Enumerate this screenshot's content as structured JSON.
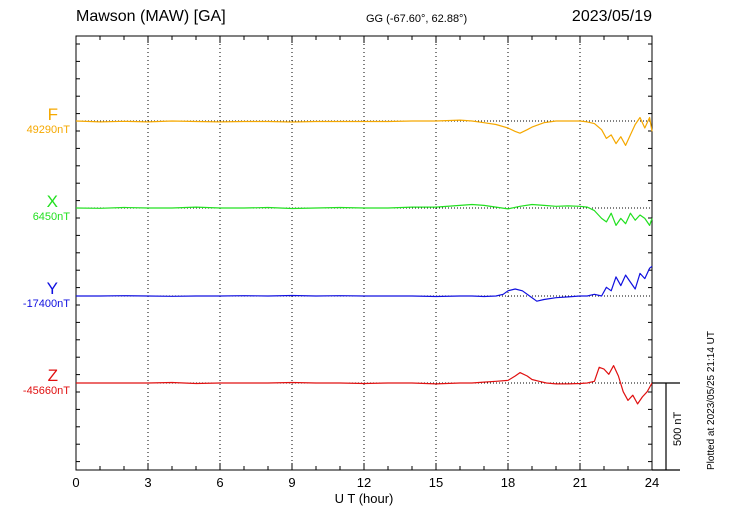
{
  "header": {
    "station": "Mawson (MAW)  [GA]",
    "coords": "GG (-67.60°,  62.88°)",
    "date": "2023/05/19"
  },
  "footer": {
    "plotted_at": "Plotted at 2023/05/25 21:14 UT",
    "scale_label": "500 nT"
  },
  "chart_data": {
    "type": "line",
    "xlabel": "U T (hour)",
    "xlim": [
      0,
      24
    ],
    "xticks": [
      0,
      3,
      6,
      9,
      12,
      15,
      18,
      21,
      24
    ],
    "grid": true,
    "scale_bar_nT": 500,
    "series": [
      {
        "name": "F",
        "baseline_label": "49290nT",
        "color": "#f5a800",
        "x": [
          0,
          1,
          2,
          3,
          4,
          5,
          6,
          7,
          8,
          9,
          10,
          11,
          12,
          13,
          14,
          15,
          16,
          16.5,
          17,
          17.5,
          18,
          18.3,
          18.5,
          18.8,
          19,
          19.5,
          20,
          20.5,
          21,
          21.3,
          21.6,
          21.9,
          22.1,
          22.3,
          22.5,
          22.7,
          22.9,
          23.1,
          23.3,
          23.5,
          23.7,
          23.9,
          24
        ],
        "y": [
          0,
          -5,
          -2,
          -5,
          0,
          -3,
          -5,
          -3,
          -3,
          -6,
          -3,
          -3,
          -3,
          -3,
          0,
          0,
          5,
          0,
          -10,
          -20,
          -40,
          -60,
          -70,
          -50,
          -35,
          -10,
          0,
          0,
          0,
          -5,
          -15,
          -50,
          -100,
          -80,
          -130,
          -90,
          -140,
          -80,
          -20,
          20,
          -40,
          20,
          -60
        ]
      },
      {
        "name": "X",
        "baseline_label": "6450nT",
        "color": "#22e020",
        "x": [
          0,
          1,
          2,
          3,
          4,
          5,
          6,
          7,
          8,
          9,
          10,
          11,
          12,
          13,
          14,
          15,
          16,
          16.5,
          17,
          17.5,
          18,
          18.5,
          19,
          19.5,
          20,
          20.5,
          21,
          21.3,
          21.6,
          21.9,
          22.1,
          22.3,
          22.5,
          22.7,
          22.9,
          23.1,
          23.3,
          23.5,
          23.7,
          23.9,
          24
        ],
        "y": [
          0,
          -2,
          3,
          0,
          0,
          5,
          0,
          0,
          3,
          -3,
          0,
          3,
          0,
          0,
          5,
          5,
          15,
          20,
          15,
          5,
          -5,
          10,
          20,
          15,
          10,
          12,
          10,
          5,
          -15,
          -60,
          -80,
          -30,
          -100,
          -60,
          -90,
          -30,
          -70,
          -40,
          -60,
          -100,
          -60
        ]
      },
      {
        "name": "Y",
        "baseline_label": "-17400nT",
        "color": "#1010e0",
        "x": [
          0,
          1,
          2,
          3,
          4,
          5,
          6,
          7,
          8,
          9,
          10,
          11,
          12,
          13,
          14,
          15,
          16,
          16.5,
          17,
          17.5,
          17.8,
          18,
          18.3,
          18.6,
          18.9,
          19.2,
          19.5,
          20,
          20.5,
          21,
          21.3,
          21.6,
          21.9,
          22.1,
          22.3,
          22.5,
          22.7,
          22.9,
          23.1,
          23.3,
          23.5,
          23.7,
          23.9,
          24
        ],
        "y": [
          0,
          0,
          2,
          0,
          -2,
          0,
          0,
          2,
          0,
          3,
          0,
          2,
          0,
          0,
          0,
          -3,
          0,
          0,
          -3,
          0,
          10,
          30,
          40,
          30,
          0,
          -30,
          -20,
          -10,
          -5,
          0,
          0,
          10,
          0,
          50,
          30,
          110,
          60,
          120,
          80,
          40,
          130,
          100,
          160,
          170
        ]
      },
      {
        "name": "Z",
        "baseline_label": "-45660nT",
        "color": "#e01010",
        "x": [
          0,
          1,
          2,
          3,
          4,
          5,
          6,
          7,
          8,
          9,
          10,
          11,
          12,
          13,
          14,
          15,
          16,
          16.5,
          17,
          17.5,
          18,
          18.3,
          18.5,
          18.8,
          19,
          19.3,
          19.6,
          20,
          20.5,
          21,
          21.3,
          21.6,
          21.8,
          22,
          22.2,
          22.4,
          22.6,
          22.8,
          23,
          23.2,
          23.4,
          23.6,
          23.8,
          24
        ],
        "y": [
          0,
          0,
          0,
          0,
          3,
          -3,
          0,
          0,
          0,
          3,
          0,
          0,
          -3,
          0,
          0,
          -5,
          0,
          0,
          5,
          10,
          15,
          40,
          60,
          40,
          20,
          10,
          0,
          -5,
          -5,
          -3,
          0,
          10,
          90,
          80,
          50,
          100,
          40,
          -50,
          -100,
          -70,
          -120,
          -80,
          -50,
          0
        ]
      }
    ]
  }
}
